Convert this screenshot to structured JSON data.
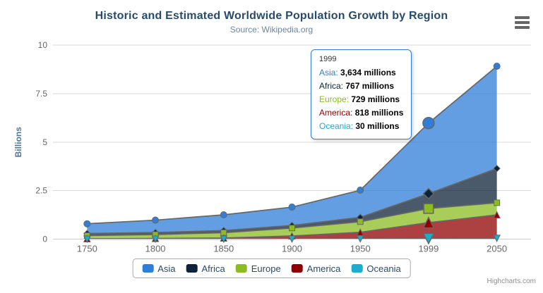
{
  "chart_data": {
    "type": "area",
    "stacking": "normal",
    "title": "Historic and Estimated Worldwide Population Growth by Region",
    "subtitle": "Source: Wikipedia.org",
    "categories": [
      "1750",
      "1800",
      "1850",
      "1900",
      "1950",
      "1999",
      "2050"
    ],
    "unit": "millions",
    "xlabel": "",
    "ylabel": "Billions",
    "ylim": [
      0,
      10
    ],
    "yticks": [
      0,
      2.5,
      5,
      7.5,
      10
    ],
    "grid": true,
    "legend_position": "bottom-center",
    "hover_category": "1999",
    "series": [
      {
        "name": "Asia",
        "color": "#2f7ed8",
        "marker": "circle",
        "values": [
          502,
          635,
          809,
          947,
          1402,
          3634,
          5268
        ]
      },
      {
        "name": "Africa",
        "color": "#0d233a",
        "marker": "diamond",
        "values": [
          106,
          107,
          111,
          133,
          221,
          767,
          1766
        ]
      },
      {
        "name": "Europe",
        "color": "#8bbc21",
        "marker": "square",
        "values": [
          163,
          203,
          276,
          408,
          547,
          729,
          628
        ]
      },
      {
        "name": "America",
        "color": "#910000",
        "marker": "triangle",
        "values": [
          18,
          31,
          54,
          156,
          339,
          818,
          1201
        ]
      },
      {
        "name": "Oceania",
        "color": "#1aadce",
        "marker": "triangle-down",
        "values": [
          2,
          2,
          2,
          6,
          13,
          30,
          46
        ]
      }
    ]
  },
  "tooltip": {
    "header": "1999",
    "rows": [
      {
        "name": "Asia",
        "value": "3,634 millions"
      },
      {
        "name": "Africa",
        "value": "767 millions"
      },
      {
        "name": "Europe",
        "value": "729 millions"
      },
      {
        "name": "America",
        "value": "818 millions"
      },
      {
        "name": "Oceania",
        "value": "30 millions"
      }
    ]
  },
  "legend": {
    "items": [
      "Asia",
      "Africa",
      "Europe",
      "America",
      "Oceania"
    ]
  },
  "credits": {
    "label": "Highcharts.com"
  },
  "export_menu": {
    "icon": "hamburger"
  },
  "colors": {
    "title": "#274b6d",
    "subtitle": "#6d869f",
    "axis_label": "#666666",
    "y_axis_title": "#4d759e",
    "grid_line": "#d8d8d8",
    "axis_line": "#c0d0e0",
    "series_outline": "#666666",
    "fill_opacity": "0.75",
    "tooltip_border": "#2f7ed8",
    "legend_border": "#aaaaaa",
    "legend_text": "#274b6d",
    "credits_text": "#909090",
    "menu_icon": "#666666"
  }
}
